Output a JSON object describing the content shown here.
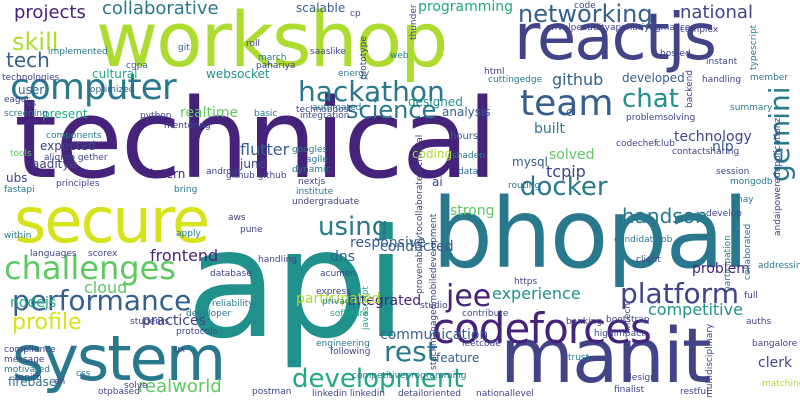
{
  "colors": {
    "background": "#ffffff",
    "purple": "#46237a",
    "indigo": "#414487",
    "blue": "#355f8d",
    "teal": "#2a788e",
    "teal_green": "#21918c",
    "green": "#22a884",
    "light_green": "#5ec962",
    "lime": "#addc30",
    "yellow": "#d6e21a"
  },
  "words": [
    {
      "text": "technical",
      "color": "purple"
    },
    {
      "text": "api",
      "color": "teal_green"
    },
    {
      "text": "workshop",
      "color": "lime"
    },
    {
      "text": "bhopal",
      "color": "teal"
    },
    {
      "text": "reactjs",
      "color": "indigo"
    },
    {
      "text": "secure",
      "color": "yellow"
    },
    {
      "text": "manit",
      "color": "indigo"
    },
    {
      "text": "system",
      "color": "teal"
    },
    {
      "text": "computer",
      "color": "teal"
    },
    {
      "text": "codeforces",
      "color": "purple"
    },
    {
      "text": "hackathon",
      "color": "teal"
    },
    {
      "text": "performance",
      "color": "blue"
    },
    {
      "text": "challenges",
      "color": "light_green"
    },
    {
      "text": "platform",
      "color": "indigo"
    },
    {
      "text": "team",
      "color": "blue"
    },
    {
      "text": "networking",
      "color": "blue"
    },
    {
      "text": "development",
      "color": "green"
    },
    {
      "text": "docker",
      "color": "teal"
    },
    {
      "text": "gemini",
      "color": "teal"
    },
    {
      "text": "chat",
      "color": "teal_green"
    },
    {
      "text": "profile",
      "color": "yellow"
    },
    {
      "text": "rest",
      "color": "teal"
    },
    {
      "text": "jee",
      "color": "purple"
    },
    {
      "text": "science",
      "color": "teal"
    },
    {
      "text": "collaborative",
      "color": "teal"
    },
    {
      "text": "projects",
      "color": "purple"
    },
    {
      "text": "skill",
      "color": "lime"
    },
    {
      "text": "tech",
      "color": "blue"
    },
    {
      "text": "using",
      "color": "teal"
    },
    {
      "text": "handson",
      "color": "teal"
    },
    {
      "text": "national",
      "color": "indigo"
    },
    {
      "text": "programming",
      "color": "green"
    },
    {
      "text": "github",
      "color": "blue"
    },
    {
      "text": "realworld",
      "color": "light_green"
    },
    {
      "text": "experience",
      "color": "teal_green"
    },
    {
      "text": "competitive",
      "color": "teal_green"
    },
    {
      "text": "communication",
      "color": "blue"
    },
    {
      "text": "frontend",
      "color": "purple"
    },
    {
      "text": "nodejs",
      "color": "green"
    },
    {
      "text": "cloud",
      "color": "light_green"
    },
    {
      "text": "flutter",
      "color": "blue"
    },
    {
      "text": "practices",
      "color": "indigo"
    },
    {
      "text": "realtime",
      "color": "light_green"
    },
    {
      "text": "integrated",
      "color": "purple"
    },
    {
      "text": "participated",
      "color": "lime"
    },
    {
      "text": "responsive",
      "color": "blue"
    },
    {
      "text": "conducted",
      "color": "blue"
    },
    {
      "text": "problem",
      "color": "purple"
    },
    {
      "text": "technology",
      "color": "indigo"
    },
    {
      "text": "clerk",
      "color": "indigo"
    },
    {
      "text": "educational",
      "color": "teal"
    },
    {
      "text": "nlp",
      "color": "blue"
    },
    {
      "text": "built",
      "color": "teal"
    },
    {
      "text": "scalable",
      "color": "blue"
    },
    {
      "text": "designed",
      "color": "teal_green"
    },
    {
      "text": "developed",
      "color": "blue"
    },
    {
      "text": "tcpip",
      "color": "indigo"
    },
    {
      "text": "solved",
      "color": "light_green"
    },
    {
      "text": "strong",
      "color": "light_green"
    },
    {
      "text": "dns",
      "color": "blue"
    },
    {
      "text": "mysql",
      "color": "blue"
    },
    {
      "text": "analysis",
      "color": "blue"
    },
    {
      "text": "user",
      "color": "blue"
    },
    {
      "text": "present",
      "color": "green"
    },
    {
      "text": "websocket",
      "color": "teal_green"
    },
    {
      "text": "cultural",
      "color": "green"
    },
    {
      "text": "intern",
      "color": "purple"
    },
    {
      "text": "june",
      "color": "indigo"
    },
    {
      "text": "ubs",
      "color": "indigo"
    },
    {
      "text": "firebase",
      "color": "teal"
    },
    {
      "text": "feature",
      "color": "blue"
    },
    {
      "text": "coding",
      "color": "lime"
    },
    {
      "text": "ai",
      "color": "indigo"
    },
    {
      "text": "aaditya",
      "color": "indigo"
    },
    {
      "text": "expected",
      "color": "indigo"
    },
    {
      "text": "c",
      "color": "blue"
    },
    {
      "text": "hours",
      "color": "blue"
    },
    {
      "text": "dynamic",
      "color": "teal"
    },
    {
      "text": "googles",
      "color": "teal"
    },
    {
      "text": "agile",
      "color": "teal"
    },
    {
      "text": "nextjs",
      "color": "indigo"
    },
    {
      "text": "institute",
      "color": "teal"
    },
    {
      "text": "undergraduate",
      "color": "indigo"
    },
    {
      "text": "github github",
      "color": "indigo"
    },
    {
      "text": "android",
      "color": "indigo"
    },
    {
      "text": "principles",
      "color": "indigo"
    },
    {
      "text": "fastapi",
      "color": "teal"
    },
    {
      "text": "alignto gether",
      "color": "indigo"
    },
    {
      "text": "python",
      "color": "indigo"
    },
    {
      "text": "mentoring",
      "color": "indigo"
    },
    {
      "text": "integration",
      "color": "indigo"
    },
    {
      "text": "cgpa",
      "color": "blue"
    },
    {
      "text": "optimized",
      "color": "blue"
    },
    {
      "text": "git",
      "color": "blue"
    },
    {
      "text": "implemented",
      "color": "teal"
    },
    {
      "text": "eager",
      "color": "indigo"
    },
    {
      "text": "technologies",
      "color": "indigo"
    },
    {
      "text": "vs",
      "color": "indigo"
    },
    {
      "text": "screening",
      "color": "teal"
    },
    {
      "text": "tools",
      "color": "light_green"
    },
    {
      "text": "components",
      "color": "teal"
    },
    {
      "text": "languages",
      "color": "indigo"
    },
    {
      "text": "scorex",
      "color": "indigo"
    },
    {
      "text": "within",
      "color": "teal"
    },
    {
      "text": "students",
      "color": "indigo"
    },
    {
      "text": "developer",
      "color": "teal"
    },
    {
      "text": "reliability",
      "color": "teal"
    },
    {
      "text": "protocols",
      "color": "indigo"
    },
    {
      "text": "compliance",
      "color": "indigo"
    },
    {
      "text": "message",
      "color": "indigo"
    },
    {
      "text": "motivated",
      "color": "teal"
    },
    {
      "text": "zenith",
      "color": "indigo"
    },
    {
      "text": "en",
      "color": "indigo"
    },
    {
      "text": "solve",
      "color": "indigo"
    },
    {
      "text": "otpbased",
      "color": "indigo"
    },
    {
      "text": "postman",
      "color": "indigo"
    },
    {
      "text": "linkedin linkedin",
      "color": "indigo"
    },
    {
      "text": "detailoriented",
      "color": "indigo"
    },
    {
      "text": "nationallevel",
      "color": "indigo"
    },
    {
      "text": "finalist",
      "color": "indigo"
    },
    {
      "text": "restful",
      "color": "indigo"
    },
    {
      "text": "design",
      "color": "indigo"
    },
    {
      "text": "multidisciplinary",
      "color": "indigo"
    },
    {
      "text": "bangalore",
      "color": "indigo"
    },
    {
      "text": "matching",
      "color": "lime"
    },
    {
      "text": "auths",
      "color": "indigo"
    },
    {
      "text": "full",
      "color": "indigo"
    },
    {
      "text": "collaborated",
      "color": "teal"
    },
    {
      "text": "participation",
      "color": "teal"
    },
    {
      "text": "develop",
      "color": "indigo"
    },
    {
      "text": "client",
      "color": "indigo"
    },
    {
      "text": "fintech",
      "color": "indigo"
    },
    {
      "text": "bootstrap",
      "color": "indigo"
    },
    {
      "text": "highimpact",
      "color": "indigo"
    },
    {
      "text": "banking",
      "color": "indigo"
    },
    {
      "text": "https",
      "color": "indigo"
    },
    {
      "text": "contribute",
      "color": "indigo"
    },
    {
      "text": "leetcode",
      "color": "indigo"
    },
    {
      "text": "studio",
      "color": "indigo"
    },
    {
      "text": "privacy",
      "color": "teal"
    },
    {
      "text": "express",
      "color": "indigo"
    },
    {
      "text": "acumen",
      "color": "indigo"
    },
    {
      "text": "engineering",
      "color": "teal"
    },
    {
      "text": "following",
      "color": "indigo"
    },
    {
      "text": "software",
      "color": "green"
    },
    {
      "text": "javascript",
      "color": "green"
    },
    {
      "text": "database",
      "color": "indigo"
    },
    {
      "text": "handling",
      "color": "indigo"
    },
    {
      "text": "pune",
      "color": "indigo"
    },
    {
      "text": "march",
      "color": "teal"
    },
    {
      "text": "roll",
      "color": "indigo"
    },
    {
      "text": "saaslike",
      "color": "indigo"
    },
    {
      "text": "energy",
      "color": "teal"
    },
    {
      "text": "pahariya",
      "color": "indigo"
    },
    {
      "text": "thunder",
      "color": "indigo"
    },
    {
      "text": "prototype",
      "color": "indigo"
    },
    {
      "text": "html",
      "color": "indigo"
    },
    {
      "text": "cuttingedge",
      "color": "teal"
    },
    {
      "text": "routing",
      "color": "teal"
    },
    {
      "text": "shaden",
      "color": "teal"
    },
    {
      "text": "codechef",
      "color": "indigo"
    },
    {
      "text": "club",
      "color": "indigo"
    },
    {
      "text": "session",
      "color": "indigo"
    },
    {
      "text": "mongodb",
      "color": "teal"
    },
    {
      "text": "hosted",
      "color": "indigo"
    },
    {
      "text": "instant",
      "color": "indigo"
    },
    {
      "text": "complex",
      "color": "indigo"
    },
    {
      "text": "typescript",
      "color": "teal"
    },
    {
      "text": "summary",
      "color": "teal"
    },
    {
      "text": "backend",
      "color": "indigo"
    },
    {
      "text": "member",
      "color": "teal"
    },
    {
      "text": "problemsolving",
      "color": "indigo"
    },
    {
      "text": "handling",
      "color": "indigo"
    },
    {
      "text": "envelpeaadityapahariyagmailcon",
      "color": "indigo"
    },
    {
      "text": "code",
      "color": "indigo"
    },
    {
      "text": "basic",
      "color": "teal"
    },
    {
      "text": "contactsharing",
      "color": "indigo"
    },
    {
      "text": "andaipoweredapplicationz",
      "color": "indigo"
    },
    {
      "text": "stackmanagedmobiledevelopment",
      "color": "indigo"
    },
    {
      "text": "provenabilitytocollaboratetechnical",
      "color": "indigo"
    },
    {
      "text": "competitiveprogramming",
      "color": "teal"
    },
    {
      "text": "technoboost",
      "color": "indigo"
    },
    {
      "text": "automated",
      "color": "teal"
    },
    {
      "text": "bring",
      "color": "teal"
    },
    {
      "text": "apply",
      "color": "teal"
    },
    {
      "text": "aws",
      "color": "indigo"
    },
    {
      "text": "ux",
      "color": "indigo"
    },
    {
      "text": "css",
      "color": "teal"
    },
    {
      "text": "trust",
      "color": "teal"
    },
    {
      "text": "candidatejob",
      "color": "teal"
    },
    {
      "text": "addressing",
      "color": "teal"
    },
    {
      "text": "may",
      "color": "teal"
    },
    {
      "text": "data",
      "color": "teal"
    },
    {
      "text": "web",
      "color": "teal"
    },
    {
      "text": "cp",
      "color": "indigo"
    }
  ]
}
